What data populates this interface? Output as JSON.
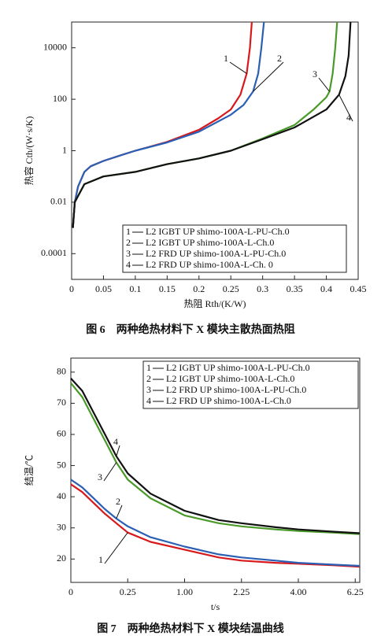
{
  "chart_data": [
    {
      "type": "line",
      "caption": "图 6　两种绝热材料下 X 模块主散热面热阻",
      "x_label": "热阻 Rth/(K/W)",
      "y_label": "热容 Cth/(W·s/K)",
      "yscale": "log",
      "xlim": [
        0,
        0.45
      ],
      "xticks": [
        0,
        0.05,
        0.1,
        0.15,
        0.2,
        0.25,
        0.3,
        0.35,
        0.4,
        0.45
      ],
      "ylim": [
        1e-05,
        100000
      ],
      "yticks": [
        0.0001,
        0.01,
        1,
        100,
        10000
      ],
      "legend": "lower right",
      "series": [
        {
          "label": "1",
          "name": "L2 IGBT UP shimo-100A-L-PU-Ch.0",
          "color": "#d7191c",
          "x": [
            0.002,
            0.005,
            0.01,
            0.02,
            0.03,
            0.05,
            0.08,
            0.1,
            0.15,
            0.2,
            0.23,
            0.25,
            0.265,
            0.275,
            0.28,
            0.283
          ],
          "values": [
            0.001,
            0.01,
            0.04,
            0.15,
            0.25,
            0.4,
            0.7,
            1,
            2.2,
            6.5,
            18,
            40,
            150,
            1000,
            10000,
            100000
          ]
        },
        {
          "label": "2",
          "name": "L2 IGBT UP shimo-100A-L-Ch.0",
          "color": "#2b5fb4",
          "x": [
            0.002,
            0.005,
            0.01,
            0.02,
            0.03,
            0.05,
            0.08,
            0.1,
            0.15,
            0.2,
            0.25,
            0.27,
            0.285,
            0.293,
            0.298,
            0.302
          ],
          "values": [
            0.001,
            0.01,
            0.04,
            0.15,
            0.25,
            0.4,
            0.7,
            1,
            2.1,
            5.5,
            25,
            60,
            200,
            1000,
            10000,
            100000
          ]
        },
        {
          "label": "3",
          "name": "L2 FRD UP shimo-100A-L-PU-Ch.0",
          "color": "#4a9a2a",
          "x": [
            0.002,
            0.005,
            0.02,
            0.05,
            0.1,
            0.15,
            0.2,
            0.25,
            0.3,
            0.35,
            0.38,
            0.4,
            0.405,
            0.41,
            0.414,
            0.417
          ],
          "values": [
            0.001,
            0.01,
            0.05,
            0.1,
            0.15,
            0.3,
            0.5,
            1,
            3,
            10,
            40,
            120,
            200,
            1000,
            10000,
            100000
          ]
        },
        {
          "label": "4",
          "name": "L2 FRD UP shimo-100A-L-Ch. 0",
          "color": "#111111",
          "x": [
            0.002,
            0.005,
            0.02,
            0.05,
            0.1,
            0.15,
            0.2,
            0.25,
            0.3,
            0.35,
            0.4,
            0.42,
            0.43,
            0.435,
            0.438
          ],
          "values": [
            0.001,
            0.01,
            0.05,
            0.1,
            0.15,
            0.3,
            0.5,
            1,
            2.8,
            8,
            40,
            150,
            800,
            5000,
            100000
          ]
        }
      ]
    },
    {
      "type": "line",
      "caption": "图 7　两种绝热材料下 X 模块结温曲线",
      "x_label": "t/s",
      "y_label": "结温/℃",
      "xscale": "sqrt",
      "xlim": [
        0,
        6.45
      ],
      "xticks": [
        0,
        0.25,
        {
          "value": 1,
          "label": "1.00"
        },
        2.25,
        {
          "value": 4,
          "label": "4.00"
        },
        6.25
      ],
      "ylim": [
        12.5,
        84.5
      ],
      "yticks": [
        20,
        30,
        40,
        50,
        60,
        70,
        80
      ],
      "legend": "upper right",
      "series": [
        {
          "label": "1",
          "name": "L2 IGBT UP shimo-100A-L-PU-Ch.0",
          "color": "#d7191c",
          "x": [
            0,
            0.01,
            0.04,
            0.09,
            0.16,
            0.25,
            0.49,
            1,
            1.69,
            2.25,
            3.24,
            4,
            5.29,
            6.45
          ],
          "values": [
            44,
            41.5,
            38,
            34.5,
            31.5,
            28.5,
            25.5,
            23,
            20.5,
            19.5,
            18.8,
            18.5,
            18,
            17.5
          ]
        },
        {
          "label": "2",
          "name": "L2 IGBT UP shimo-100A-L-Ch.0",
          "color": "#2b5fb4",
          "x": [
            0,
            0.01,
            0.04,
            0.09,
            0.16,
            0.25,
            0.49,
            1,
            1.69,
            2.25,
            3.24,
            4,
            5.29,
            6.45
          ],
          "values": [
            45.5,
            43,
            39.5,
            36,
            33,
            30.5,
            27,
            24,
            21.5,
            20.5,
            19.5,
            18.8,
            18.2,
            17.8
          ]
        },
        {
          "label": "3",
          "name": "L2 FRD UP shimo-100A-L-PU-Ch.0",
          "color": "#4a9a2a",
          "x": [
            0,
            0.01,
            0.04,
            0.09,
            0.16,
            0.25,
            0.49,
            1,
            1.69,
            2.25,
            3.24,
            4,
            5.29,
            6.45
          ],
          "values": [
            76.5,
            72,
            65,
            58,
            51,
            45.5,
            39.5,
            34,
            31.5,
            30.5,
            29.5,
            29,
            28.5,
            28
          ]
        },
        {
          "label": "4",
          "name": "L2 FRD UP shimo-100A-L-Ch.0",
          "color": "#111111",
          "x": [
            0,
            0.01,
            0.04,
            0.09,
            0.16,
            0.25,
            0.49,
            1,
            1.69,
            2.25,
            3.24,
            4,
            5.29,
            6.45
          ],
          "values": [
            78,
            74,
            67,
            60,
            53,
            47.5,
            41,
            35.5,
            32.5,
            31.5,
            30.2,
            29.5,
            28.8,
            28.3
          ]
        }
      ]
    }
  ]
}
